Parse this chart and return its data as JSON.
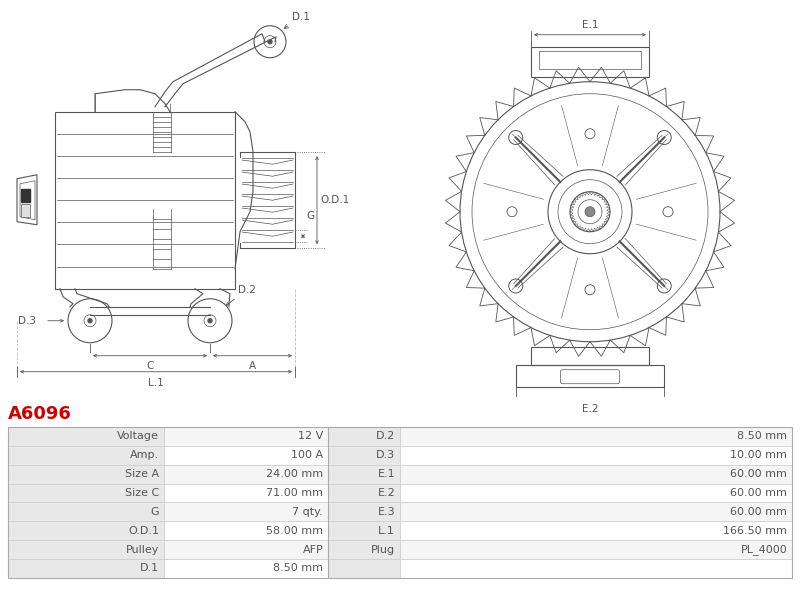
{
  "title": "A6096",
  "title_color": "#cc0000",
  "bg_color": "#ffffff",
  "line_color": "#555555",
  "table": {
    "col1_labels": [
      "Voltage",
      "Amp.",
      "Size A",
      "Size C",
      "G",
      "O.D.1",
      "Pulley",
      "D.1"
    ],
    "col1_values": [
      "12 V",
      "100 A",
      "24.00 mm",
      "71.00 mm",
      "7 qty.",
      "58.00 mm",
      "AFP",
      "8.50 mm"
    ],
    "col2_labels": [
      "D.2",
      "D.3",
      "E.1",
      "E.2",
      "E.3",
      "L.1",
      "Plug",
      ""
    ],
    "col2_values": [
      "8.50 mm",
      "10.00 mm",
      "60.00 mm",
      "60.00 mm",
      "60.00 mm",
      "166.50 mm",
      "PL_4000",
      ""
    ],
    "header_bg": "#e8e8e8",
    "row_bg_odd": "#f5f5f5",
    "row_bg_even": "#ffffff",
    "border_color": "#cccccc",
    "text_color": "#555555",
    "font_size": 8.0
  }
}
